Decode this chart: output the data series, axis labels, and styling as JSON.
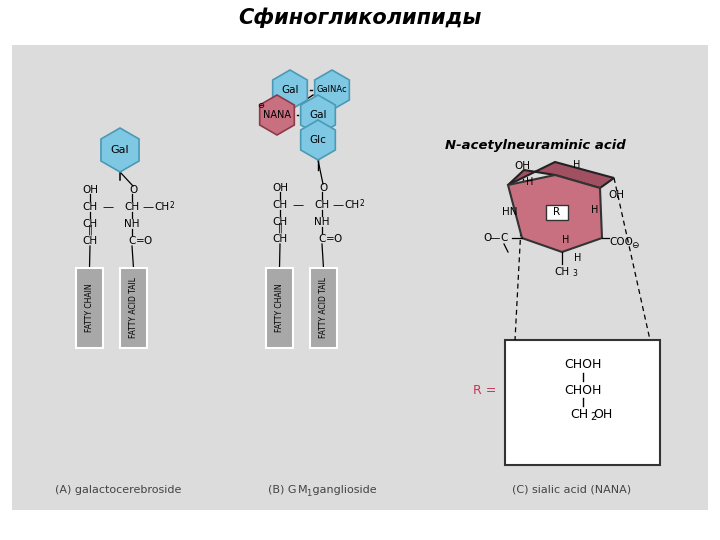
{
  "title": "Сфиногликолипиды",
  "bg_color": "#dcdcdc",
  "outer_bg": "#ffffff",
  "hex_blue_fill": "#7ec8e3",
  "hex_blue_edge": "#4a9ab5",
  "hex_pink_fill": "#c97080",
  "hex_pink_edge": "#8b3a4a",
  "box_fill": "#a8a8a8",
  "box_edge": "#ffffff",
  "text_dark": "#1a1a1a",
  "text_gray": "#444444",
  "pink_hex_fill": "#c97080",
  "expand_box_fill": "#ffffff",
  "expand_box_edge": "#333333",
  "r_label_color": "#cc3355",
  "annotation": "N-acetylneuraminic acid",
  "label_A": "(A) galactocerebroside",
  "label_C": "(C) sialic acid (NANA)"
}
